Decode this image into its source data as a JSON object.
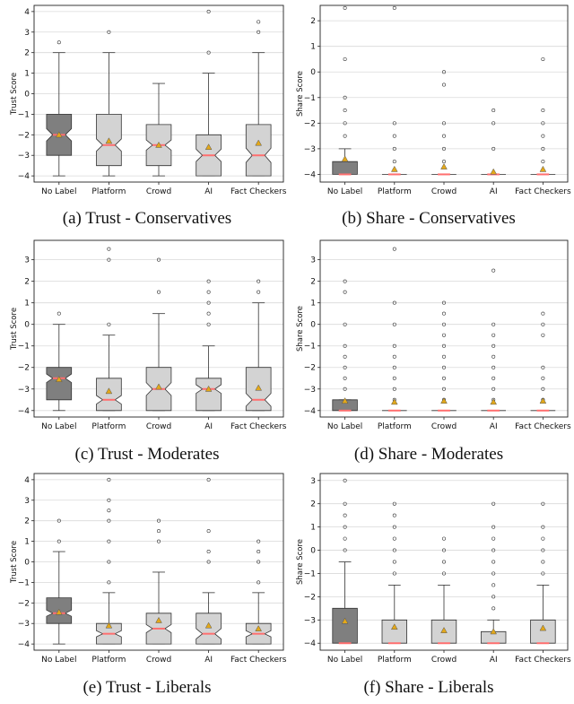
{
  "chart_data": [
    {
      "type": "box",
      "caption": "(a) Trust - Conservatives",
      "ylabel": "Trust Score",
      "ylim": [
        -4.3,
        4.3
      ],
      "yticks": [
        -4,
        -3,
        -2,
        -1,
        0,
        1,
        2,
        3,
        4
      ],
      "grid": "horizontal",
      "categories": [
        "No Label",
        "Platform",
        "Crowd",
        "AI",
        "Fact Checkers"
      ],
      "boxes": [
        {
          "q1": -3,
          "median": -2,
          "q3": -1,
          "whislo": -4,
          "whishi": 2,
          "mean": -2.0,
          "notch_lo": -2.3,
          "notch_hi": -1.7,
          "fliers": [
            2.5
          ],
          "highlight": true
        },
        {
          "q1": -3.5,
          "median": -2.5,
          "q3": -1,
          "whislo": -4,
          "whishi": 2,
          "mean": -2.3,
          "notch_lo": -2.8,
          "notch_hi": -2.2,
          "fliers": [
            3
          ]
        },
        {
          "q1": -3.5,
          "median": -2.5,
          "q3": -1.5,
          "whislo": -4,
          "whishi": 0.5,
          "mean": -2.5,
          "notch_lo": -2.75,
          "notch_hi": -2.25,
          "fliers": []
        },
        {
          "q1": -4,
          "median": -3,
          "q3": -2,
          "whislo": -4,
          "whishi": 1,
          "mean": -2.6,
          "notch_lo": -3.3,
          "notch_hi": -2.7,
          "fliers": [
            2,
            4
          ]
        },
        {
          "q1": -4,
          "median": -3,
          "q3": -1.5,
          "whislo": -4,
          "whishi": 2,
          "mean": -2.4,
          "notch_lo": -3.35,
          "notch_hi": -2.65,
          "fliers": [
            3,
            3.5
          ]
        }
      ]
    },
    {
      "type": "box",
      "caption": "(b) Share - Conservatives",
      "ylabel": "Share Score",
      "ylim": [
        -4.3,
        2.6
      ],
      "yticks": [
        -4,
        -3,
        -2,
        -1,
        0,
        1,
        2
      ],
      "grid": "horizontal",
      "categories": [
        "No Label",
        "Platform",
        "Crowd",
        "AI",
        "Fact Checkers"
      ],
      "boxes": [
        {
          "q1": -4,
          "median": -4,
          "q3": -3.5,
          "whislo": -4,
          "whishi": -3,
          "mean": -3.4,
          "notch_lo": -4,
          "notch_hi": -4,
          "fliers": [
            -2.5,
            -2,
            -1.5,
            -1,
            0.5,
            2.5
          ],
          "highlight": true
        },
        {
          "q1": -4,
          "median": -4,
          "q3": -4,
          "whislo": -4,
          "whishi": -4,
          "mean": -3.8,
          "notch_lo": -4,
          "notch_hi": -4,
          "fliers": [
            -3.5,
            -3,
            -2.5,
            -2,
            2.5
          ]
        },
        {
          "q1": -4,
          "median": -4,
          "q3": -4,
          "whislo": -4,
          "whishi": -4,
          "mean": -3.7,
          "notch_lo": -4,
          "notch_hi": -4,
          "fliers": [
            -3.5,
            -3,
            -2.5,
            -2,
            -0.5,
            0
          ]
        },
        {
          "q1": -4,
          "median": -4,
          "q3": -4,
          "whislo": -4,
          "whishi": -4,
          "mean": -3.9,
          "notch_lo": -4,
          "notch_hi": -4,
          "fliers": [
            -3,
            -2,
            -1.5
          ]
        },
        {
          "q1": -4,
          "median": -4,
          "q3": -4,
          "whislo": -4,
          "whishi": -4,
          "mean": -3.8,
          "notch_lo": -4,
          "notch_hi": -4,
          "fliers": [
            -3.5,
            -3,
            -2.5,
            -2,
            -1.5,
            0.5
          ]
        }
      ]
    },
    {
      "type": "box",
      "caption": "(c) Trust - Moderates",
      "ylabel": "Trust Score",
      "ylim": [
        -4.3,
        3.9
      ],
      "yticks": [
        -4,
        -3,
        -2,
        -1,
        0,
        1,
        2,
        3
      ],
      "grid": "horizontal",
      "categories": [
        "No Label",
        "Platform",
        "Crowd",
        "AI",
        "Fact Checkers"
      ],
      "boxes": [
        {
          "q1": -3.5,
          "median": -2.5,
          "q3": -2,
          "whislo": -4,
          "whishi": 0,
          "mean": -2.55,
          "notch_lo": -2.7,
          "notch_hi": -2.3,
          "fliers": [
            0.5
          ],
          "highlight": true
        },
        {
          "q1": -4,
          "median": -3.5,
          "q3": -2.5,
          "whislo": -4,
          "whishi": -0.5,
          "mean": -3.1,
          "notch_lo": -3.7,
          "notch_hi": -3.3,
          "fliers": [
            0,
            3,
            3.5
          ]
        },
        {
          "q1": -4,
          "median": -3,
          "q3": -2,
          "whislo": -4,
          "whishi": 0.5,
          "mean": -2.9,
          "notch_lo": -3.3,
          "notch_hi": -2.7,
          "fliers": [
            1.5,
            3
          ]
        },
        {
          "q1": -4,
          "median": -3,
          "q3": -2.5,
          "whislo": -4,
          "whishi": -1,
          "mean": -3.0,
          "notch_lo": -3.2,
          "notch_hi": -2.8,
          "fliers": [
            0,
            0.5,
            1,
            1.5,
            2
          ]
        },
        {
          "q1": -4,
          "median": -3.5,
          "q3": -2,
          "whislo": -4,
          "whishi": 1,
          "mean": -2.95,
          "notch_lo": -3.8,
          "notch_hi": -3.2,
          "fliers": [
            1.5,
            2
          ]
        }
      ]
    },
    {
      "type": "box",
      "caption": "(d) Share - Moderates",
      "ylabel": "Share Score",
      "ylim": [
        -4.3,
        3.9
      ],
      "yticks": [
        -4,
        -3,
        -2,
        -1,
        0,
        1,
        2,
        3
      ],
      "grid": "horizontal",
      "categories": [
        "No Label",
        "Platform",
        "Crowd",
        "AI",
        "Fact Checkers"
      ],
      "boxes": [
        {
          "q1": -4,
          "median": -4,
          "q3": -3.5,
          "whislo": -4,
          "whishi": -3.5,
          "mean": -3.55,
          "notch_lo": -4,
          "notch_hi": -4,
          "fliers": [
            -3,
            -2.5,
            -2,
            -1.5,
            -1,
            0,
            1.5,
            2
          ],
          "highlight": true
        },
        {
          "q1": -4,
          "median": -4,
          "q3": -4,
          "whislo": -4,
          "whishi": -4,
          "mean": -3.6,
          "notch_lo": -4,
          "notch_hi": -4,
          "fliers": [
            -3.5,
            -3,
            -2.5,
            -2,
            -1.5,
            -1,
            0,
            1,
            3.5
          ]
        },
        {
          "q1": -4,
          "median": -4,
          "q3": -4,
          "whislo": -4,
          "whishi": -4,
          "mean": -3.55,
          "notch_lo": -4,
          "notch_hi": -4,
          "fliers": [
            -3.5,
            -3,
            -2.5,
            -2,
            -1.5,
            -1,
            -0.5,
            0,
            0.5,
            1
          ]
        },
        {
          "q1": -4,
          "median": -4,
          "q3": -4,
          "whislo": -4,
          "whishi": -4,
          "mean": -3.6,
          "notch_lo": -4,
          "notch_hi": -4,
          "fliers": [
            -3.5,
            -3,
            -2.5,
            -2,
            -1.5,
            -1,
            -0.5,
            0,
            2.5
          ]
        },
        {
          "q1": -4,
          "median": -4,
          "q3": -4,
          "whislo": -4,
          "whishi": -4,
          "mean": -3.55,
          "notch_lo": -4,
          "notch_hi": -4,
          "fliers": [
            -3.5,
            -3,
            -2.5,
            -2,
            -0.5,
            0,
            0.5
          ]
        }
      ]
    },
    {
      "type": "box",
      "caption": "(e) Trust - Liberals",
      "ylabel": "Trust Score",
      "ylim": [
        -4.3,
        4.3
      ],
      "yticks": [
        -4,
        -3,
        -2,
        -1,
        0,
        1,
        2,
        3,
        4
      ],
      "grid": "horizontal",
      "categories": [
        "No Label",
        "Platform",
        "Crowd",
        "AI",
        "Fact Checkers"
      ],
      "boxes": [
        {
          "q1": -3,
          "median": -2.5,
          "q3": -1.75,
          "whislo": -4,
          "whishi": 0.5,
          "mean": -2.45,
          "notch_lo": -2.65,
          "notch_hi": -2.35,
          "fliers": [
            1,
            2
          ],
          "highlight": true
        },
        {
          "q1": -4,
          "median": -3.5,
          "q3": -3,
          "whislo": -4,
          "whishi": -1.5,
          "mean": -3.1,
          "notch_lo": -3.65,
          "notch_hi": -3.35,
          "fliers": [
            -1,
            0,
            1,
            2,
            2.5,
            3,
            4
          ]
        },
        {
          "q1": -4,
          "median": -3.25,
          "q3": -2.5,
          "whislo": -4,
          "whishi": -0.5,
          "mean": -2.85,
          "notch_lo": -3.45,
          "notch_hi": -3.05,
          "fliers": [
            1,
            1.5,
            2
          ]
        },
        {
          "q1": -4,
          "median": -3.5,
          "q3": -2.5,
          "whislo": -4,
          "whishi": -1.5,
          "mean": -3.1,
          "notch_lo": -3.75,
          "notch_hi": -3.25,
          "fliers": [
            0,
            0.5,
            1.5,
            4
          ]
        },
        {
          "q1": -4,
          "median": -3.5,
          "q3": -3,
          "whislo": -4,
          "whishi": -1.5,
          "mean": -3.25,
          "notch_lo": -3.65,
          "notch_hi": -3.35,
          "fliers": [
            -1,
            0,
            0.5,
            1
          ]
        }
      ]
    },
    {
      "type": "box",
      "caption": "(f) Share - Liberals",
      "ylabel": "Share Score",
      "ylim": [
        -4.3,
        3.3
      ],
      "yticks": [
        -4,
        -3,
        -2,
        -1,
        0,
        1,
        2,
        3
      ],
      "grid": "horizontal",
      "categories": [
        "No Label",
        "Platform",
        "Crowd",
        "AI",
        "Fact Checkers"
      ],
      "boxes": [
        {
          "q1": -4,
          "median": -4,
          "q3": -2.5,
          "whislo": -4,
          "whishi": -0.5,
          "mean": -3.05,
          "notch_lo": -4,
          "notch_hi": -4,
          "fliers": [
            0,
            0.5,
            1,
            1.5,
            2,
            3
          ],
          "highlight": true
        },
        {
          "q1": -4,
          "median": -4,
          "q3": -3,
          "whislo": -4,
          "whishi": -1.5,
          "mean": -3.3,
          "notch_lo": -4,
          "notch_hi": -4,
          "fliers": [
            -1,
            -0.5,
            0,
            0.5,
            1,
            1.5,
            2
          ]
        },
        {
          "q1": -4,
          "median": -4,
          "q3": -3,
          "whislo": -4,
          "whishi": -1.5,
          "mean": -3.45,
          "notch_lo": -4,
          "notch_hi": -4,
          "fliers": [
            -1,
            -0.5,
            0,
            0.5
          ]
        },
        {
          "q1": -4,
          "median": -4,
          "q3": -3.5,
          "whislo": -4,
          "whishi": -3,
          "mean": -3.5,
          "notch_lo": -4,
          "notch_hi": -4,
          "fliers": [
            -2.5,
            -2,
            -1.5,
            -1,
            -0.5,
            0,
            0.5,
            1,
            2
          ]
        },
        {
          "q1": -4,
          "median": -4,
          "q3": -3,
          "whislo": -4,
          "whishi": -1.5,
          "mean": -3.35,
          "notch_lo": -4,
          "notch_hi": -4,
          "fliers": [
            -1,
            -0.5,
            0,
            0.5,
            1,
            2
          ]
        }
      ]
    }
  ],
  "colors": {
    "highlight_box": "#7f7f7f",
    "box": "#d3d3d3",
    "median": "#ff6f6f",
    "mean_marker": "#e3a81a",
    "grid": "#d9d9d9"
  }
}
